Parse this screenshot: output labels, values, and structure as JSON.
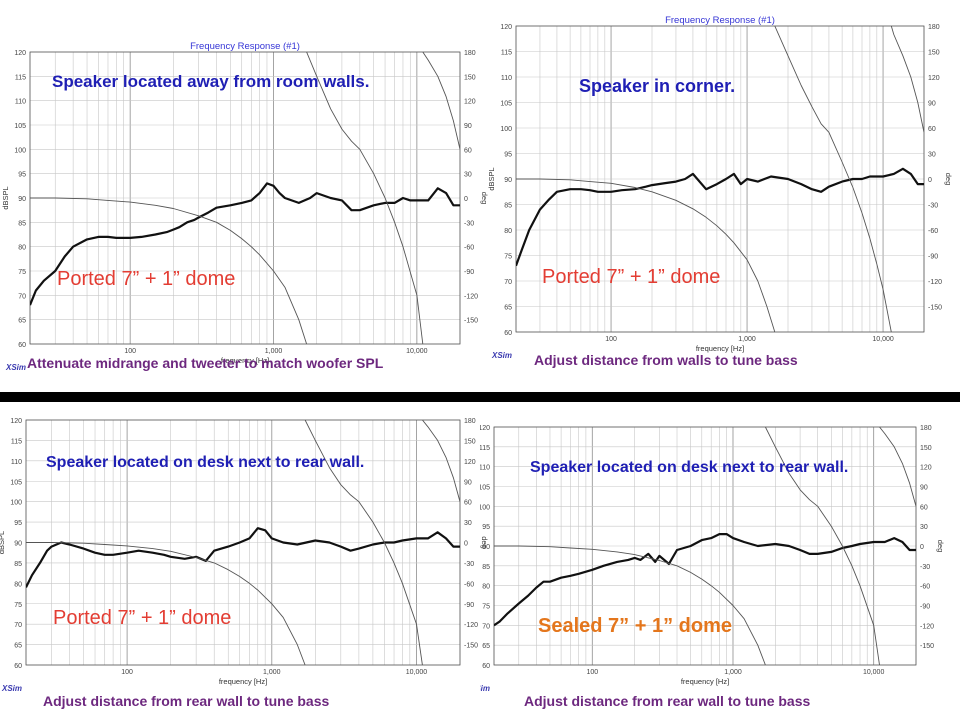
{
  "brand_label": "XSim",
  "colors": {
    "title": "#3535d6",
    "annotation_blue": "#1f1fb4",
    "annotation_red": "#e33d33",
    "annotation_orange": "#e4761c",
    "caption": "#6d287f",
    "grid": "#c7c7c7",
    "separator": "#000000"
  },
  "panels": [
    {
      "title": "Frequency Response (#1)",
      "annotation": "Speaker located away from room walls.",
      "label": "Ported 7” + 1” dome",
      "label_color": "red",
      "caption": "Attenuate midrange and tweeter to match woofer SPL"
    },
    {
      "title": "Frequency Response (#1)",
      "annotation": "Speaker in corner.",
      "label": "Ported 7” + 1” dome",
      "label_color": "red",
      "caption": "Adjust distance from walls to tune bass"
    },
    {
      "title": "",
      "annotation": "Speaker located on desk next to rear wall.",
      "label": "Ported 7” + 1” dome",
      "label_color": "red",
      "caption": "Adjust distance from rear wall to tune bass"
    },
    {
      "title": "",
      "annotation": "Speaker located on desk next to rear wall.",
      "label": "Sealed 7” + 1” dome",
      "label_color": "orange",
      "caption": "Adjust distance from rear wall to tune bass"
    }
  ],
  "chart_data": [
    {
      "type": "line",
      "title": "Frequency Response (#1)",
      "xlabel": "frequency [Hz]",
      "ylabel": "dBSPL",
      "y2label": "deg",
      "xscale": "log",
      "xlim": [
        20,
        20000
      ],
      "ylim": [
        60,
        120
      ],
      "y2lim": [
        -180,
        180
      ],
      "xticks": [
        100,
        1000,
        10000
      ],
      "xtick_labels": [
        "100",
        "1,000",
        "10,000"
      ],
      "yticks": [
        60,
        65,
        70,
        75,
        80,
        85,
        90,
        95,
        100,
        105,
        110,
        115,
        120
      ],
      "y2ticks": [
        -150,
        -120,
        -90,
        -60,
        -30,
        0,
        30,
        60,
        90,
        120,
        150,
        180
      ],
      "grid": true,
      "series": [
        {
          "axis": "y",
          "x": [
            20,
            22,
            25,
            30,
            35,
            40,
            50,
            60,
            70,
            80,
            100,
            120,
            150,
            180,
            200,
            220,
            250,
            280,
            300,
            350,
            400,
            500,
            600,
            700,
            800,
            900,
            1000,
            1100,
            1200,
            1500,
            1800,
            2000,
            2500,
            3000,
            3500,
            4000,
            5000,
            6000,
            7000,
            8000,
            9000,
            10000,
            12000,
            14000,
            16000,
            18000,
            20000
          ],
          "y": [
            68,
            71,
            73,
            75,
            78,
            80,
            81.5,
            82,
            82,
            81.8,
            81.8,
            82,
            82.5,
            83,
            83.5,
            84,
            85,
            85.5,
            86,
            87,
            88,
            88.5,
            89,
            89.5,
            91,
            93,
            92.5,
            91,
            90,
            89,
            90,
            91,
            90,
            89.5,
            87.5,
            87.5,
            88.5,
            89,
            89,
            90,
            89.5,
            89.5,
            89.5,
            92,
            91,
            88.5,
            88.5
          ]
        },
        {
          "axis": "y2",
          "x": [
            20,
            30,
            50,
            70,
            100,
            150,
            200,
            300,
            400,
            500,
            600,
            700,
            800,
            1000,
            1200,
            1500,
            1700
          ],
          "y": [
            0,
            0,
            -1,
            -3,
            -5,
            -9,
            -13,
            -22,
            -30,
            -40,
            -50,
            -60,
            -70,
            -90,
            -110,
            -150,
            -180
          ]
        },
        {
          "axis": "y2",
          "x": [
            1700,
            2000,
            2500,
            3000,
            3500,
            4000,
            5000,
            6000,
            7000,
            8000,
            10000,
            11000
          ],
          "y": [
            180,
            150,
            110,
            85,
            70,
            60,
            30,
            0,
            -30,
            -60,
            -120,
            -180
          ]
        },
        {
          "axis": "y2",
          "x": [
            11000,
            12000,
            14000,
            16000,
            18000,
            20000
          ],
          "y": [
            180,
            170,
            150,
            125,
            95,
            60
          ]
        }
      ]
    },
    {
      "type": "line",
      "title": "Frequency Response (#1)",
      "xlabel": "frequency [Hz]",
      "ylabel": "dBSPL",
      "y2label": "deg",
      "xscale": "log",
      "xlim": [
        20,
        20000
      ],
      "ylim": [
        60,
        120
      ],
      "y2lim": [
        -180,
        180
      ],
      "xticks": [
        100,
        1000,
        10000
      ],
      "xtick_labels": [
        "100",
        "1,000",
        "10,000"
      ],
      "yticks": [
        60,
        65,
        70,
        75,
        80,
        85,
        90,
        95,
        100,
        105,
        110,
        115,
        120
      ],
      "y2ticks": [
        -150,
        -120,
        -90,
        -60,
        -30,
        0,
        30,
        60,
        90,
        120,
        150,
        180
      ],
      "grid": true,
      "series": [
        {
          "axis": "y",
          "x": [
            20,
            22,
            25,
            30,
            35,
            40,
            50,
            60,
            70,
            80,
            100,
            120,
            150,
            180,
            200,
            250,
            300,
            350,
            400,
            500,
            600,
            700,
            800,
            900,
            1000,
            1200,
            1500,
            2000,
            2500,
            3000,
            3500,
            4000,
            5000,
            6000,
            7000,
            8000,
            10000,
            12000,
            14000,
            16000,
            18000,
            20000
          ],
          "y": [
            73,
            76,
            80,
            84,
            86,
            87.5,
            88,
            88,
            87.8,
            87.5,
            87.5,
            87.8,
            88,
            88.5,
            88.8,
            89.2,
            89.5,
            90,
            91,
            88,
            89,
            90,
            91,
            89,
            90,
            89.5,
            90.5,
            90,
            89,
            88,
            87.5,
            88.5,
            89.5,
            90,
            90,
            90.5,
            90.5,
            91,
            92,
            91,
            89,
            89
          ]
        },
        {
          "axis": "y2",
          "x": [
            20,
            30,
            50,
            70,
            100,
            150,
            200,
            300,
            400,
            500,
            600,
            700,
            800,
            1000,
            1200,
            1400,
            1600
          ],
          "y": [
            0,
            0,
            -1,
            -3,
            -5,
            -10,
            -15,
            -25,
            -35,
            -45,
            -55,
            -65,
            -75,
            -95,
            -120,
            -150,
            -180
          ]
        },
        {
          "axis": "y2",
          "x": [
            1600,
            2000,
            2500,
            3000,
            3500,
            4000,
            5000,
            6000,
            7000,
            8000,
            9000,
            10000,
            11500
          ],
          "y": [
            180,
            145,
            110,
            85,
            65,
            55,
            20,
            -10,
            -40,
            -70,
            -100,
            -130,
            -180
          ]
        },
        {
          "axis": "y2",
          "x": [
            11500,
            12000,
            14000,
            16000,
            18000,
            20000
          ],
          "y": [
            180,
            170,
            145,
            120,
            90,
            55
          ]
        }
      ]
    },
    {
      "type": "line",
      "title": "",
      "xlabel": "frequency [Hz]",
      "ylabel": "dBSPL",
      "y2label": "deg",
      "xscale": "log",
      "xlim": [
        20,
        20000
      ],
      "ylim": [
        60,
        120
      ],
      "y2lim": [
        -180,
        180
      ],
      "xticks": [
        100,
        1000,
        10000
      ],
      "xtick_labels": [
        "100",
        "1,000",
        "10,000"
      ],
      "yticks": [
        60,
        65,
        70,
        75,
        80,
        85,
        90,
        95,
        100,
        105,
        110,
        115,
        120
      ],
      "y2ticks": [
        -150,
        -120,
        -90,
        -60,
        -30,
        0,
        30,
        60,
        90,
        120,
        150,
        180
      ],
      "grid": true,
      "series": [
        {
          "axis": "y",
          "x": [
            20,
            22,
            25,
            28,
            30,
            35,
            40,
            50,
            60,
            70,
            80,
            100,
            120,
            150,
            180,
            200,
            250,
            300,
            350,
            400,
            500,
            600,
            700,
            800,
            900,
            1000,
            1200,
            1500,
            2000,
            2500,
            3000,
            3500,
            4000,
            5000,
            6000,
            7000,
            8000,
            10000,
            12000,
            14000,
            16000,
            18000,
            20000
          ],
          "y": [
            79,
            82,
            85,
            88,
            89,
            90,
            89.5,
            88.5,
            87.5,
            87,
            87,
            87.5,
            88,
            87.5,
            87,
            86.5,
            86,
            86.5,
            85.5,
            88,
            89,
            90,
            91,
            93.5,
            93,
            91,
            90,
            89.5,
            90.5,
            90,
            89,
            88,
            88.5,
            89.5,
            90,
            90,
            90.5,
            91,
            91,
            92.5,
            91,
            89,
            89
          ]
        },
        {
          "axis": "y2",
          "x": [
            20,
            30,
            50,
            70,
            100,
            150,
            200,
            300,
            400,
            500,
            600,
            700,
            800,
            1000,
            1200,
            1500,
            1700
          ],
          "y": [
            0,
            0,
            -1,
            -3,
            -5,
            -9,
            -13,
            -22,
            -30,
            -40,
            -50,
            -60,
            -70,
            -90,
            -110,
            -150,
            -180
          ]
        },
        {
          "axis": "y2",
          "x": [
            1700,
            2000,
            2500,
            3000,
            3500,
            4000,
            5000,
            6000,
            7000,
            8000,
            10000,
            11000
          ],
          "y": [
            180,
            150,
            110,
            85,
            70,
            60,
            30,
            0,
            -30,
            -60,
            -120,
            -180
          ]
        },
        {
          "axis": "y2",
          "x": [
            11000,
            12000,
            14000,
            16000,
            18000,
            20000
          ],
          "y": [
            180,
            170,
            150,
            125,
            95,
            60
          ]
        }
      ]
    },
    {
      "type": "line",
      "title": "",
      "xlabel": "frequency [Hz]",
      "ylabel": "dBSPL",
      "y2label": "deg",
      "xscale": "log",
      "xlim": [
        20,
        20000
      ],
      "ylim": [
        60,
        120
      ],
      "y2lim": [
        -180,
        180
      ],
      "xticks": [
        100,
        1000,
        10000
      ],
      "xtick_labels": [
        "100",
        "1,000",
        "10,000"
      ],
      "yticks": [
        60,
        65,
        70,
        75,
        80,
        85,
        90,
        95,
        100,
        105,
        110,
        115,
        120
      ],
      "y2ticks": [
        -150,
        -120,
        -90,
        -60,
        -30,
        0,
        30,
        60,
        90,
        120,
        150,
        180
      ],
      "grid": true,
      "series": [
        {
          "axis": "y",
          "x": [
            20,
            22,
            25,
            30,
            35,
            40,
            45,
            50,
            60,
            70,
            80,
            100,
            120,
            150,
            180,
            200,
            220,
            250,
            280,
            300,
            350,
            400,
            500,
            600,
            700,
            800,
            900,
            1000,
            1200,
            1500,
            2000,
            2500,
            3000,
            3500,
            4000,
            5000,
            6000,
            7000,
            8000,
            10000,
            12000,
            14000,
            16000,
            18000,
            20000
          ],
          "y": [
            70,
            71,
            73,
            75.5,
            77.5,
            79.5,
            81,
            81,
            82,
            82.5,
            83,
            84,
            85,
            86,
            86.5,
            87,
            86.5,
            88,
            86,
            87.5,
            85.5,
            89,
            90,
            91.5,
            92,
            93,
            93,
            92,
            91,
            90,
            90.5,
            90,
            89,
            88,
            88,
            88.5,
            89.5,
            90,
            90.5,
            91,
            91,
            92,
            91,
            89,
            89
          ]
        },
        {
          "axis": "y2",
          "x": [
            20,
            30,
            50,
            70,
            100,
            150,
            200,
            300,
            400,
            500,
            600,
            700,
            800,
            1000,
            1200,
            1500,
            1700
          ],
          "y": [
            0,
            0,
            -1,
            -3,
            -5,
            -9,
            -13,
            -22,
            -30,
            -40,
            -50,
            -60,
            -70,
            -90,
            -110,
            -150,
            -180
          ]
        },
        {
          "axis": "y2",
          "x": [
            1700,
            2000,
            2500,
            3000,
            3500,
            4000,
            5000,
            6000,
            7000,
            8000,
            10000,
            11000
          ],
          "y": [
            180,
            150,
            110,
            85,
            70,
            60,
            30,
            0,
            -30,
            -60,
            -120,
            -180
          ]
        },
        {
          "axis": "y2",
          "x": [
            11000,
            12000,
            14000,
            16000,
            18000,
            20000
          ],
          "y": [
            180,
            170,
            150,
            125,
            95,
            60
          ]
        }
      ]
    }
  ]
}
